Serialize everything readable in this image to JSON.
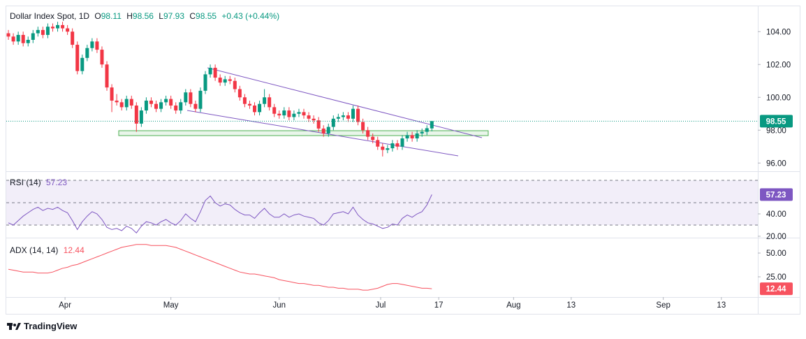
{
  "chart_data": [
    {
      "type": "candlestick",
      "title": "Dollar Index Spot, 1D",
      "legend_keys": [
        "O",
        "H",
        "L",
        "C"
      ],
      "change_label": "+0.43 (+0.44%)",
      "up_color": "#089981",
      "down_color": "#f23645",
      "open": [
        103.9,
        103.7,
        103.4,
        103.8,
        103.3,
        103.5,
        103.9,
        104.1,
        103.8,
        104.3,
        104.2,
        104.4,
        104.2,
        104.0,
        103.2,
        101.6,
        102.4,
        103.0,
        103.4,
        102.9,
        102.0,
        100.6,
        99.8,
        99.7,
        99.4,
        99.9,
        99.5,
        98.4,
        99.2,
        99.8,
        99.6,
        99.3,
        99.7,
        99.9,
        99.5,
        99.2,
        99.7,
        100.3,
        99.6,
        99.3,
        100.4,
        101.4,
        101.8,
        101.2,
        100.9,
        101.1,
        101.0,
        100.5,
        100.0,
        99.6,
        99.5,
        99.1,
        99.6,
        100.0,
        99.4,
        99.0,
        98.9,
        99.2,
        98.8,
        99.0,
        99.1,
        98.9,
        98.7,
        98.6,
        98.1,
        97.8,
        98.2,
        98.7,
        98.8,
        98.9,
        98.7,
        99.3,
        98.5,
        98.0,
        97.6,
        97.4,
        97.0,
        96.8,
        96.9,
        97.2,
        97.0,
        97.5,
        97.7,
        97.5,
        97.8,
        97.9,
        98.11
      ],
      "high": [
        104.1,
        103.9,
        104.0,
        104.0,
        103.7,
        104.1,
        104.3,
        104.3,
        104.5,
        104.5,
        104.6,
        104.6,
        104.4,
        104.2,
        103.4,
        102.6,
        103.2,
        103.6,
        103.6,
        103.1,
        102.2,
        100.8,
        100.2,
        99.9,
        100.1,
        100.1,
        99.7,
        99.4,
        100.0,
        100.0,
        99.8,
        99.9,
        100.1,
        100.1,
        99.7,
        99.9,
        100.5,
        100.5,
        99.8,
        100.6,
        101.6,
        102.0,
        102.0,
        101.4,
        101.3,
        101.3,
        101.2,
        100.7,
        100.2,
        99.8,
        99.7,
        99.8,
        100.5,
        100.2,
        99.6,
        99.2,
        99.4,
        99.4,
        99.2,
        99.3,
        99.3,
        99.1,
        98.9,
        98.8,
        98.3,
        98.4,
        98.9,
        99.0,
        99.1,
        99.1,
        99.5,
        99.5,
        98.7,
        98.2,
        97.8,
        97.6,
        97.2,
        97.1,
        97.4,
        97.4,
        97.7,
        97.9,
        97.9,
        98.0,
        98.1,
        98.3,
        98.56
      ],
      "low": [
        103.5,
        103.2,
        103.2,
        103.1,
        103.1,
        103.3,
        103.7,
        103.6,
        103.6,
        104.0,
        104.0,
        104.0,
        103.8,
        103.0,
        101.4,
        101.4,
        102.2,
        102.8,
        102.7,
        101.8,
        100.4,
        99.1,
        99.5,
        99.2,
        99.2,
        99.3,
        97.9,
        98.2,
        99.0,
        99.4,
        99.1,
        99.1,
        99.5,
        99.3,
        99.0,
        99.0,
        99.5,
        99.4,
        99.1,
        99.1,
        100.2,
        101.2,
        101.0,
        100.7,
        100.7,
        100.8,
        100.3,
        99.8,
        99.4,
        99.3,
        98.9,
        98.9,
        99.4,
        99.2,
        98.8,
        98.7,
        98.7,
        98.6,
        98.6,
        98.8,
        98.7,
        98.5,
        98.4,
        97.9,
        97.6,
        97.6,
        98.0,
        98.5,
        98.6,
        98.5,
        98.5,
        98.3,
        97.8,
        97.4,
        97.2,
        96.8,
        96.4,
        96.6,
        96.7,
        96.8,
        96.8,
        97.3,
        97.3,
        97.3,
        97.6,
        97.7,
        97.93
      ],
      "close": [
        103.7,
        103.4,
        103.8,
        103.3,
        103.5,
        103.9,
        104.1,
        103.8,
        104.3,
        104.2,
        104.4,
        104.2,
        104.0,
        103.2,
        101.6,
        102.4,
        103.0,
        103.4,
        102.9,
        102.0,
        100.6,
        99.8,
        99.7,
        99.4,
        99.9,
        99.5,
        98.4,
        99.2,
        99.8,
        99.6,
        99.3,
        99.7,
        99.9,
        99.5,
        99.2,
        99.7,
        100.3,
        99.6,
        99.3,
        100.4,
        101.4,
        101.8,
        101.2,
        100.9,
        101.1,
        101.0,
        100.5,
        100.0,
        99.6,
        99.5,
        99.1,
        99.6,
        100.0,
        99.4,
        99.0,
        98.9,
        99.2,
        98.8,
        99.0,
        99.1,
        98.9,
        98.7,
        98.6,
        98.1,
        97.8,
        98.2,
        98.7,
        98.8,
        98.9,
        98.7,
        99.3,
        98.5,
        98.0,
        97.6,
        97.4,
        97.0,
        96.8,
        96.9,
        97.2,
        97.0,
        97.5,
        97.7,
        97.5,
        97.8,
        97.9,
        98.12,
        98.55
      ],
      "ylim": [
        95.5,
        105.5
      ],
      "yticks": [
        {
          "value": 104,
          "label": "104.00"
        },
        {
          "value": 102,
          "label": "102.00"
        },
        {
          "value": 100,
          "label": "100.00"
        },
        {
          "value": 98,
          "label": "98.00"
        },
        {
          "value": 96,
          "label": "96.00"
        }
      ],
      "xlim": [
        -0.43,
        152.2
      ],
      "xticks": [
        {
          "value": 11.5,
          "label": "Apr"
        },
        {
          "value": 33.0,
          "label": "May"
        },
        {
          "value": 55.0,
          "label": "Jun"
        },
        {
          "value": 75.6,
          "label": "Jul"
        },
        {
          "value": 87.4,
          "label": "17"
        },
        {
          "value": 102.6,
          "label": "Aug"
        },
        {
          "value": 114.3,
          "label": "13"
        },
        {
          "value": 133.0,
          "label": "Sep"
        },
        {
          "value": 144.8,
          "label": "13"
        }
      ]
    },
    {
      "type": "line",
      "title": "RSI (14)",
      "color": "#7e57c2",
      "levels": [
        70,
        50,
        30
      ],
      "band": [
        30,
        70
      ],
      "values": [
        32,
        30,
        34,
        38,
        41,
        44,
        46,
        43,
        45,
        44,
        46,
        43,
        41,
        34,
        26,
        33,
        38,
        42,
        40,
        35,
        28,
        26,
        27,
        25,
        29,
        27,
        23,
        29,
        33,
        32,
        30,
        33,
        35,
        32,
        30,
        34,
        40,
        36,
        33,
        42,
        52,
        56,
        50,
        47,
        49,
        48,
        44,
        41,
        39,
        39,
        36,
        41,
        45,
        40,
        37,
        37,
        40,
        37,
        39,
        40,
        38,
        37,
        36,
        32,
        30,
        34,
        40,
        41,
        42,
        40,
        46,
        39,
        35,
        32,
        31,
        29,
        27,
        28,
        31,
        30,
        36,
        39,
        37,
        40,
        42,
        48,
        57.23
      ],
      "ylim": [
        18.75,
        77.5
      ],
      "yticks": [
        {
          "value": 40,
          "label": "40.00"
        },
        {
          "value": 20,
          "label": "20.00"
        }
      ]
    },
    {
      "type": "line",
      "title": "ADX (14, 14)",
      "color": "#f7525f",
      "values": [
        33,
        32,
        31,
        30,
        30,
        30,
        29,
        29,
        29,
        30,
        32,
        34,
        35,
        37,
        38,
        40,
        42,
        44,
        46,
        48,
        50,
        52,
        54,
        56,
        57,
        58,
        59,
        59,
        59,
        58,
        58,
        58,
        58,
        57,
        56,
        54,
        52,
        50,
        48,
        46,
        44,
        42,
        40,
        38,
        36,
        34,
        32,
        30,
        29,
        28,
        28,
        27,
        26,
        25,
        24,
        22,
        21,
        20,
        19,
        18,
        18,
        17,
        16,
        16,
        15,
        14,
        14,
        13,
        13,
        12,
        12,
        12,
        11,
        11,
        12,
        13,
        15,
        17,
        18,
        18,
        17,
        16,
        15,
        14,
        13,
        13,
        12.44
      ],
      "ylim": [
        3.7,
        64
      ],
      "yticks": [
        {
          "value": 50,
          "label": "50.00"
        },
        {
          "value": 25,
          "label": "25.00"
        }
      ]
    }
  ],
  "footer": {
    "brand": "TradingView"
  }
}
